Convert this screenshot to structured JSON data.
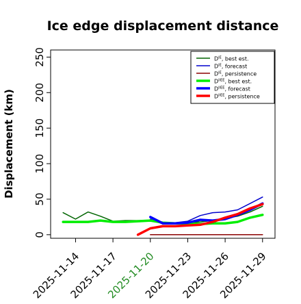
{
  "chart_data": {
    "type": "line",
    "title": "Ice edge displacement distance",
    "xlabel": "",
    "ylabel": "Displacement (km)",
    "ylim": [
      -5,
      260
    ],
    "xlim": [
      "2025-11-12",
      "2025-11-30"
    ],
    "y_ticks": [
      0,
      50,
      100,
      150,
      200,
      250
    ],
    "x_ticks": [
      "2025-11-14",
      "2025-11-17",
      "2025-11-20",
      "2025-11-23",
      "2025-11-26",
      "2025-11-29"
    ],
    "highlighted_tick": "2025-11-20",
    "highlight_color": "#228B22",
    "grid": false,
    "legend_position": "top-right",
    "series": [
      {
        "name_main": "D",
        "name_sup": "IE",
        "name_rest": ", best est.",
        "color": "#006400",
        "width": "thin",
        "x": [
          "2025-11-13",
          "2025-11-14",
          "2025-11-15",
          "2025-11-16",
          "2025-11-17",
          "2025-11-18",
          "2025-11-19",
          "2025-11-20",
          "2025-11-21",
          "2025-11-22",
          "2025-11-23",
          "2025-11-24",
          "2025-11-25",
          "2025-11-26",
          "2025-11-27",
          "2025-11-28",
          "2025-11-29"
        ],
        "values": [
          31,
          22,
          32,
          26,
          19,
          20,
          20,
          20,
          16,
          16,
          17,
          18,
          20,
          23,
          26,
          32,
          40
        ]
      },
      {
        "name_main": "D",
        "name_sup": "IE",
        "name_rest": ", forecast",
        "color": "#0000CD",
        "width": "thin",
        "x": [
          "2025-11-20",
          "2025-11-21",
          "2025-11-22",
          "2025-11-23",
          "2025-11-24",
          "2025-11-25",
          "2025-11-26",
          "2025-11-27",
          "2025-11-28",
          "2025-11-29"
        ],
        "values": [
          22,
          15,
          17,
          19,
          27,
          31,
          32,
          35,
          44,
          53
        ]
      },
      {
        "name_main": "D",
        "name_sup": "IE",
        "name_rest": ", persistence",
        "color": "#8B0000",
        "width": "thin",
        "x": [
          "2025-11-20",
          "2025-11-21",
          "2025-11-22",
          "2025-11-23",
          "2025-11-24",
          "2025-11-25",
          "2025-11-26",
          "2025-11-27",
          "2025-11-28",
          "2025-11-29"
        ],
        "values": [
          0,
          0,
          0,
          0,
          0,
          0,
          0,
          0,
          0,
          0
        ]
      },
      {
        "name_main": "D",
        "name_sup": "IIEE",
        "name_rest": ", best est.",
        "color": "#00EE00",
        "width": "thick",
        "x": [
          "2025-11-13",
          "2025-11-14",
          "2025-11-15",
          "2025-11-16",
          "2025-11-17",
          "2025-11-18",
          "2025-11-19",
          "2025-11-20",
          "2025-11-21",
          "2025-11-22",
          "2025-11-23",
          "2025-11-24",
          "2025-11-25",
          "2025-11-26",
          "2025-11-27",
          "2025-11-28",
          "2025-11-29"
        ],
        "values": [
          18,
          18,
          18,
          20,
          18,
          18,
          19,
          20,
          17,
          16,
          16,
          15,
          16,
          16,
          18,
          24,
          28
        ]
      },
      {
        "name_main": "D",
        "name_sup": "IIEE",
        "name_rest": ", forecast",
        "color": "#0000FF",
        "width": "thick",
        "x": [
          "2025-11-20",
          "2025-11-21",
          "2025-11-22",
          "2025-11-23",
          "2025-11-24",
          "2025-11-25",
          "2025-11-26",
          "2025-11-27",
          "2025-11-28",
          "2025-11-29"
        ],
        "values": [
          25,
          16,
          16,
          17,
          21,
          20,
          22,
          28,
          35,
          44
        ]
      },
      {
        "name_main": "D",
        "name_sup": "IIEE",
        "name_rest": ", persistence",
        "color": "#FF0000",
        "width": "thick",
        "x": [
          "2025-11-19",
          "2025-11-20",
          "2025-11-21",
          "2025-11-22",
          "2025-11-23",
          "2025-11-24",
          "2025-11-25",
          "2025-11-26",
          "2025-11-27",
          "2025-11-28",
          "2025-11-29"
        ],
        "values": [
          0,
          9,
          12,
          12,
          13,
          14,
          18,
          24,
          29,
          37,
          43
        ]
      }
    ]
  }
}
